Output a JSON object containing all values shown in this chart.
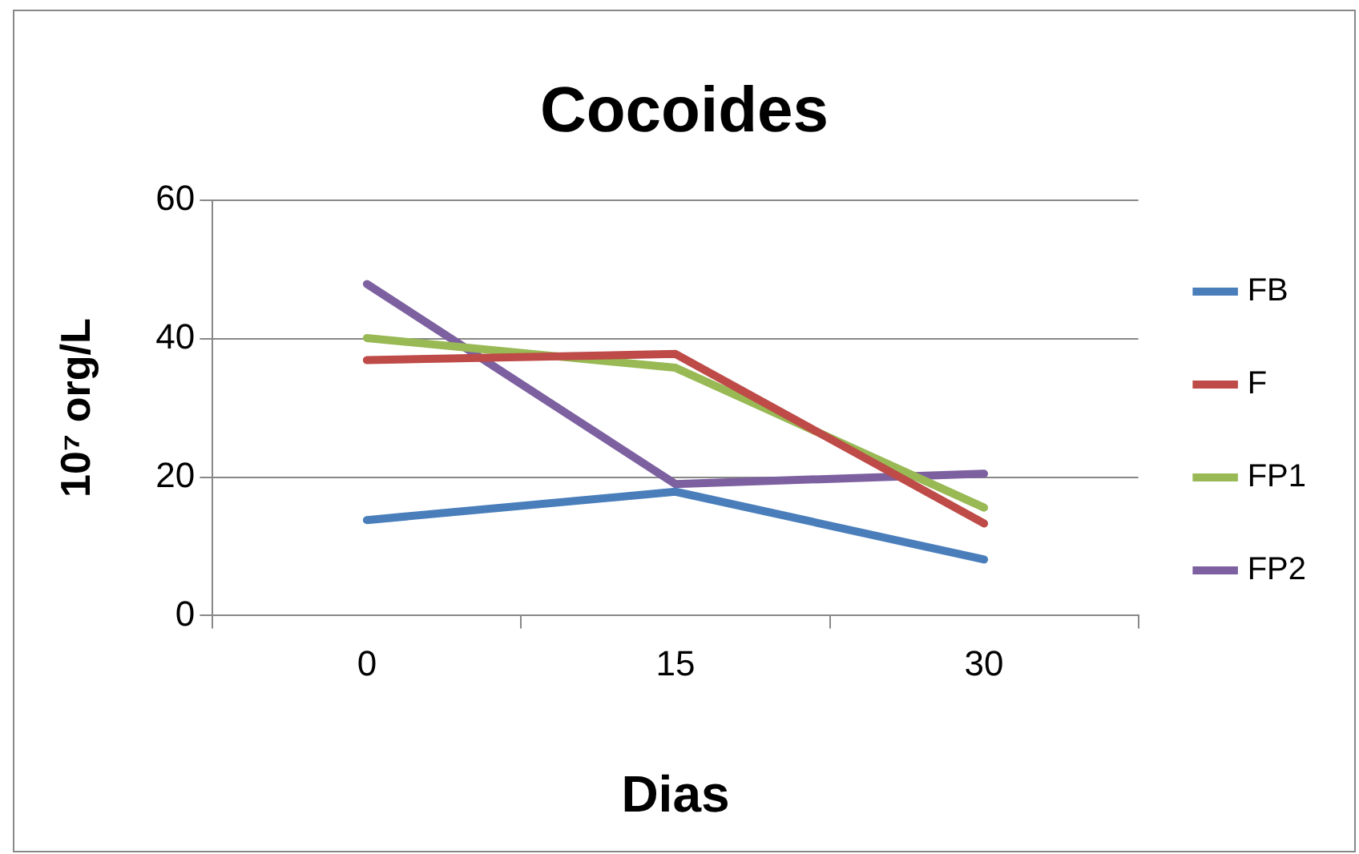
{
  "chart_data": {
    "type": "line",
    "title": "Cocoides",
    "xlabel": "Dias",
    "ylabel": "10⁷ org/L",
    "categories": [
      "0",
      "15",
      "30"
    ],
    "series": [
      {
        "name": "FB",
        "color": "#4a7ebb",
        "values": [
          13.8,
          17.9,
          8.1
        ]
      },
      {
        "name": "F",
        "color": "#be4b48",
        "values": [
          36.9,
          37.8,
          13.3
        ]
      },
      {
        "name": "FP1",
        "color": "#98b954",
        "values": [
          40.1,
          35.8,
          15.6
        ]
      },
      {
        "name": "FP2",
        "color": "#7d60a0",
        "values": [
          47.9,
          19.0,
          20.5
        ]
      }
    ],
    "ylim": [
      0,
      60
    ],
    "yticks": [
      0,
      20,
      40,
      60
    ],
    "grid": "y",
    "legend": "right",
    "marker": "none",
    "line_style": "solid"
  }
}
